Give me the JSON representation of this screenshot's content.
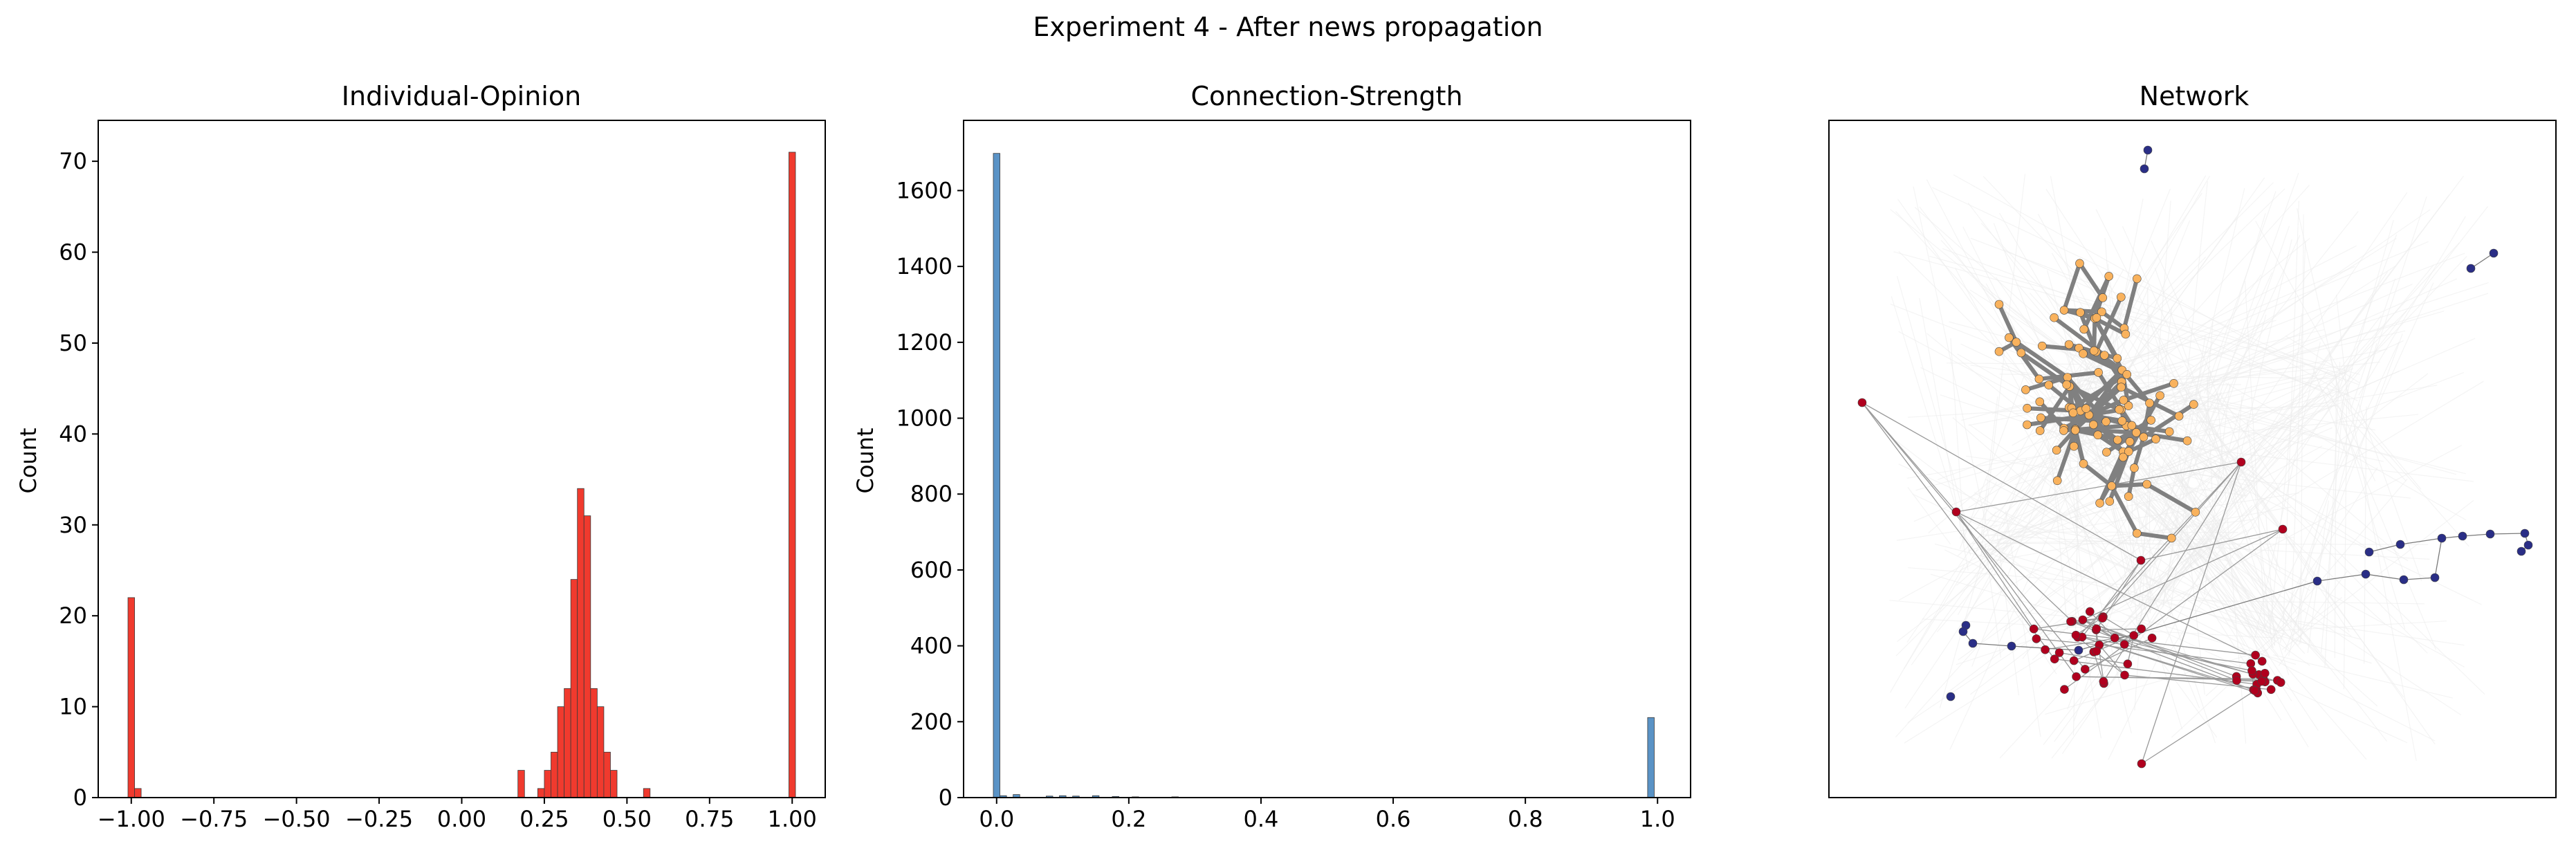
{
  "figure": {
    "suptitle": "Experiment 4 - After news propagation"
  },
  "colors": {
    "hist1_fill": "#f03a2e",
    "hist2_fill": "#5a93c6",
    "net_orange": "#f9b25d",
    "net_red": "#b0001e",
    "net_blue": "#2a2e86",
    "edge_strong": "#808080",
    "edge_bg": "#ececec"
  },
  "chart_data": [
    {
      "type": "bar",
      "title": "Individual-Opinion",
      "xlabel": "",
      "ylabel": "Count",
      "xlim": [
        -1.1,
        1.1
      ],
      "ylim": [
        0,
        74.5
      ],
      "xticks": [
        -1.0,
        -0.75,
        -0.5,
        -0.25,
        0.0,
        0.25,
        0.5,
        0.75,
        1.0
      ],
      "xtick_labels": [
        "−1.00",
        "−0.75",
        "−0.50",
        "−0.25",
        "0.00",
        "0.25",
        "0.50",
        "0.75",
        "1.00"
      ],
      "yticks": [
        0,
        10,
        20,
        30,
        40,
        50,
        60,
        70
      ],
      "ytick_labels": [
        "0",
        "10",
        "20",
        "30",
        "40",
        "50",
        "60",
        "70"
      ],
      "bin_width": 0.02,
      "bins": [
        {
          "x": -1.0,
          "count": 22
        },
        {
          "x": -0.98,
          "count": 1
        },
        {
          "x": 0.18,
          "count": 3
        },
        {
          "x": 0.24,
          "count": 1
        },
        {
          "x": 0.26,
          "count": 3
        },
        {
          "x": 0.28,
          "count": 5
        },
        {
          "x": 0.3,
          "count": 10
        },
        {
          "x": 0.32,
          "count": 12
        },
        {
          "x": 0.34,
          "count": 24
        },
        {
          "x": 0.36,
          "count": 34
        },
        {
          "x": 0.38,
          "count": 31
        },
        {
          "x": 0.4,
          "count": 12
        },
        {
          "x": 0.42,
          "count": 10
        },
        {
          "x": 0.44,
          "count": 5
        },
        {
          "x": 0.46,
          "count": 3
        },
        {
          "x": 0.56,
          "count": 1
        },
        {
          "x": 1.0,
          "count": 71
        }
      ]
    },
    {
      "type": "bar",
      "title": "Connection-Strength",
      "xlabel": "",
      "ylabel": "Count",
      "xlim": [
        -0.05,
        1.05
      ],
      "ylim": [
        0,
        1785
      ],
      "xticks": [
        0.0,
        0.2,
        0.4,
        0.6,
        0.8,
        1.0
      ],
      "xtick_labels": [
        "0.0",
        "0.2",
        "0.4",
        "0.6",
        "0.8",
        "1.0"
      ],
      "yticks": [
        0,
        200,
        400,
        600,
        800,
        1000,
        1200,
        1400,
        1600
      ],
      "ytick_labels": [
        "0",
        "200",
        "400",
        "600",
        "800",
        "1000",
        "1200",
        "1400",
        "1600"
      ],
      "bin_width": 0.01,
      "bins": [
        {
          "x": 0.0,
          "count": 1698
        },
        {
          "x": 0.01,
          "count": 5
        },
        {
          "x": 0.03,
          "count": 8
        },
        {
          "x": 0.08,
          "count": 4
        },
        {
          "x": 0.1,
          "count": 5
        },
        {
          "x": 0.12,
          "count": 4
        },
        {
          "x": 0.15,
          "count": 5
        },
        {
          "x": 0.18,
          "count": 3
        },
        {
          "x": 0.21,
          "count": 2
        },
        {
          "x": 0.27,
          "count": 2
        },
        {
          "x": 0.99,
          "count": 211
        }
      ]
    },
    {
      "type": "network",
      "title": "Network",
      "groups": {
        "orange": {
          "count": 93
        },
        "red": {
          "count": 58
        },
        "blue": {
          "count": 22
        }
      }
    }
  ]
}
